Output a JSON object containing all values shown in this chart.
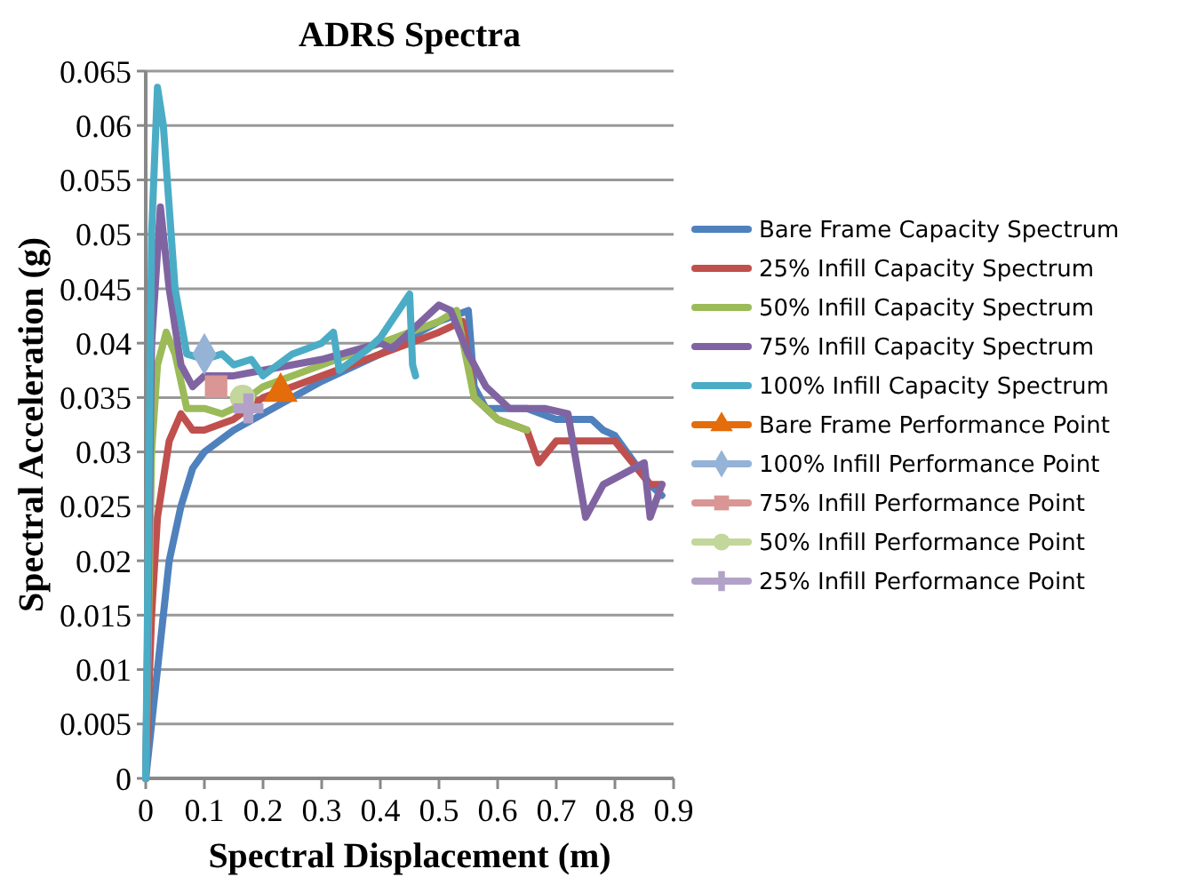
{
  "chart_data": {
    "type": "line",
    "title": "ADRS Spectra",
    "xlabel": "Spectral Displacement (m)",
    "ylabel": "Spectral Acceleration (g)",
    "xlim": [
      0,
      0.9
    ],
    "xticks": [
      0,
      0.1,
      0.2,
      0.3,
      0.4,
      0.5,
      0.6,
      0.7,
      0.8,
      0.9
    ],
    "ylim": [
      0,
      0.065
    ],
    "yticks": [
      0,
      0.005,
      0.01,
      0.015,
      0.02,
      0.025,
      0.03,
      0.035,
      0.04,
      0.045,
      0.05,
      0.055,
      0.06,
      0.065
    ],
    "grid": "y",
    "legend": "right",
    "marker": "none",
    "line_style": "solid",
    "series": [
      {
        "name": "Bare Frame Capacity Spectrum",
        "color": "#4f81bd",
        "x": [
          0,
          0.02,
          0.04,
          0.06,
          0.08,
          0.1,
          0.15,
          0.2,
          0.3,
          0.4,
          0.5,
          0.55,
          0.56,
          0.58,
          0.65,
          0.7,
          0.76,
          0.78,
          0.8,
          0.86,
          0.88
        ],
        "values": [
          0,
          0.01,
          0.02,
          0.025,
          0.0285,
          0.03,
          0.032,
          0.0335,
          0.0365,
          0.039,
          0.042,
          0.043,
          0.036,
          0.034,
          0.034,
          0.033,
          0.033,
          0.032,
          0.0315,
          0.027,
          0.026
        ]
      },
      {
        "name": "25% Infill Capacity Spectrum",
        "color": "#c0504d",
        "x": [
          0,
          0.01,
          0.02,
          0.04,
          0.06,
          0.08,
          0.1,
          0.15,
          0.2,
          0.3,
          0.4,
          0.5,
          0.54,
          0.56,
          0.6,
          0.65,
          0.67,
          0.7,
          0.78,
          0.8,
          0.86,
          0.88
        ],
        "values": [
          0,
          0.015,
          0.024,
          0.031,
          0.0335,
          0.032,
          0.032,
          0.033,
          0.035,
          0.037,
          0.039,
          0.041,
          0.042,
          0.035,
          0.033,
          0.032,
          0.029,
          0.031,
          0.031,
          0.031,
          0.027,
          0.027
        ]
      },
      {
        "name": "50% Infill Capacity Spectrum",
        "color": "#9bbb59",
        "x": [
          0,
          0.01,
          0.02,
          0.035,
          0.05,
          0.07,
          0.1,
          0.13,
          0.15,
          0.2,
          0.3,
          0.4,
          0.5,
          0.53,
          0.56,
          0.6,
          0.65
        ],
        "values": [
          0,
          0.03,
          0.038,
          0.041,
          0.039,
          0.034,
          0.034,
          0.0335,
          0.034,
          0.036,
          0.038,
          0.04,
          0.042,
          0.043,
          0.035,
          0.033,
          0.032
        ]
      },
      {
        "name": "75% Infill Capacity Spectrum",
        "color": "#8064a2",
        "x": [
          0,
          0.01,
          0.025,
          0.04,
          0.06,
          0.08,
          0.1,
          0.15,
          0.2,
          0.3,
          0.4,
          0.42,
          0.45,
          0.5,
          0.52,
          0.55,
          0.58,
          0.62,
          0.68,
          0.72,
          0.75,
          0.78,
          0.85,
          0.86,
          0.88
        ],
        "values": [
          0,
          0.04,
          0.0525,
          0.045,
          0.038,
          0.036,
          0.037,
          0.037,
          0.0375,
          0.0385,
          0.04,
          0.0395,
          0.041,
          0.0435,
          0.043,
          0.039,
          0.036,
          0.034,
          0.034,
          0.0335,
          0.024,
          0.027,
          0.029,
          0.024,
          0.027
        ]
      },
      {
        "name": "100% Infill Capacity Spectrum",
        "color": "#4bacc6",
        "x": [
          0,
          0.01,
          0.02,
          0.03,
          0.05,
          0.07,
          0.1,
          0.13,
          0.15,
          0.18,
          0.2,
          0.25,
          0.3,
          0.32,
          0.33,
          0.38,
          0.4,
          0.45,
          0.455,
          0.46
        ],
        "values": [
          0,
          0.05,
          0.0635,
          0.06,
          0.045,
          0.039,
          0.0385,
          0.039,
          0.038,
          0.0385,
          0.037,
          0.039,
          0.04,
          0.041,
          0.0375,
          0.0395,
          0.0405,
          0.0445,
          0.038,
          0.037
        ]
      },
      {
        "name": "Bare Frame Performance Point",
        "type": "scatter",
        "marker": "triangle",
        "color": "#e46c0a",
        "x": [
          0.23
        ],
        "values": [
          0.0355
        ]
      },
      {
        "name": "100% Infill Performance Point",
        "type": "scatter",
        "marker": "diamond",
        "color": "#95b3d7",
        "x": [
          0.1
        ],
        "values": [
          0.039
        ]
      },
      {
        "name": "75% Infill Performance Point",
        "type": "scatter",
        "marker": "square",
        "color": "#d99694",
        "x": [
          0.12
        ],
        "values": [
          0.036
        ]
      },
      {
        "name": "50% Infill Performance Point",
        "type": "scatter",
        "marker": "circle",
        "color": "#c3d69b",
        "x": [
          0.165
        ],
        "values": [
          0.035
        ]
      },
      {
        "name": "25% Infill Performance Point",
        "type": "scatter",
        "marker": "cross",
        "color": "#b3a2c7",
        "x": [
          0.175
        ],
        "values": [
          0.034
        ]
      }
    ]
  }
}
